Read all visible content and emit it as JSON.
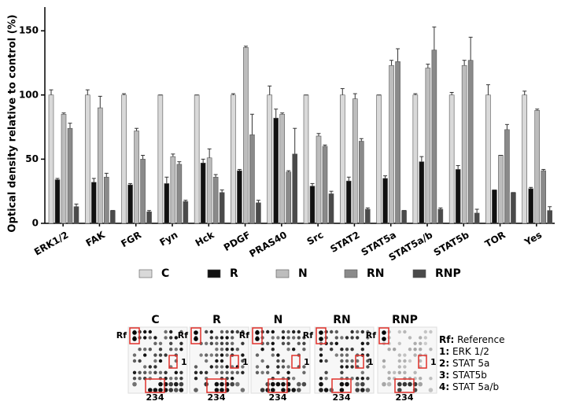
{
  "chart_data": {
    "type": "bar",
    "y_label": "Optical density relative to control (%)",
    "categories": [
      "ERK1/2",
      "FAK",
      "FGR",
      "Fyn",
      "Hck",
      "PDGF",
      "PRAS40",
      "Src",
      "STAT2",
      "STAT5a",
      "STAT5a/b",
      "STAT5b",
      "TOR",
      "Yes"
    ],
    "series": [
      {
        "name": "C",
        "color": "#d9d9d9",
        "values": [
          100,
          100,
          100,
          100,
          100,
          100,
          100,
          100,
          100,
          100,
          100,
          100,
          100,
          100
        ],
        "errors": [
          4,
          4,
          1,
          0,
          0,
          1,
          7,
          0,
          5,
          0,
          1,
          2,
          8,
          3
        ]
      },
      {
        "name": "R",
        "color": "#111111",
        "values": [
          34,
          32,
          30,
          31,
          47,
          41,
          82,
          29,
          33,
          35,
          48,
          42,
          26,
          27
        ],
        "errors": [
          1,
          3,
          1,
          5,
          3,
          1,
          7,
          2,
          3,
          2,
          4,
          3,
          0,
          1
        ]
      },
      {
        "name": "N",
        "color": "#bdbdbd",
        "values": [
          85,
          90,
          72,
          52,
          51,
          137,
          85,
          68,
          97,
          123,
          121,
          123,
          53,
          88
        ],
        "errors": [
          1,
          9,
          2,
          2,
          7,
          1,
          1,
          2,
          4,
          4,
          3,
          4,
          0,
          1
        ]
      },
      {
        "name": "RN",
        "color": "#8a8a8a",
        "values": [
          74,
          36,
          50,
          46,
          36,
          69,
          40,
          60,
          64,
          126,
          135,
          127,
          73,
          41
        ],
        "errors": [
          4,
          3,
          3,
          2,
          2,
          16,
          1,
          1,
          2,
          10,
          18,
          18,
          4,
          1
        ]
      },
      {
        "name": "RNP",
        "color": "#4a4a4a",
        "values": [
          13,
          10,
          9,
          17,
          24,
          16,
          54,
          23,
          11,
          10,
          11,
          8,
          24,
          10
        ],
        "errors": [
          2,
          0,
          1,
          1,
          2,
          2,
          20,
          2,
          1,
          0,
          1,
          3,
          0,
          3
        ]
      }
    ],
    "ylim": [
      0,
      155
    ],
    "yticks": [
      0,
      50,
      100,
      150
    ],
    "grid": false,
    "legend": "bottom"
  },
  "blot": {
    "panels": [
      "C",
      "R",
      "N",
      "RN",
      "RNP"
    ],
    "spot_labels": {
      "reference": "Rf",
      "one": "1",
      "group": "234"
    },
    "key": [
      {
        "code": "Rf:",
        "text": "Reference"
      },
      {
        "code": "1:",
        "text": "ERK 1/2"
      },
      {
        "code": "2:",
        "text": "STAT 5a"
      },
      {
        "code": "3:",
        "text": "STAT5b"
      },
      {
        "code": "4:",
        "text": "STAT 5a/b"
      }
    ]
  }
}
